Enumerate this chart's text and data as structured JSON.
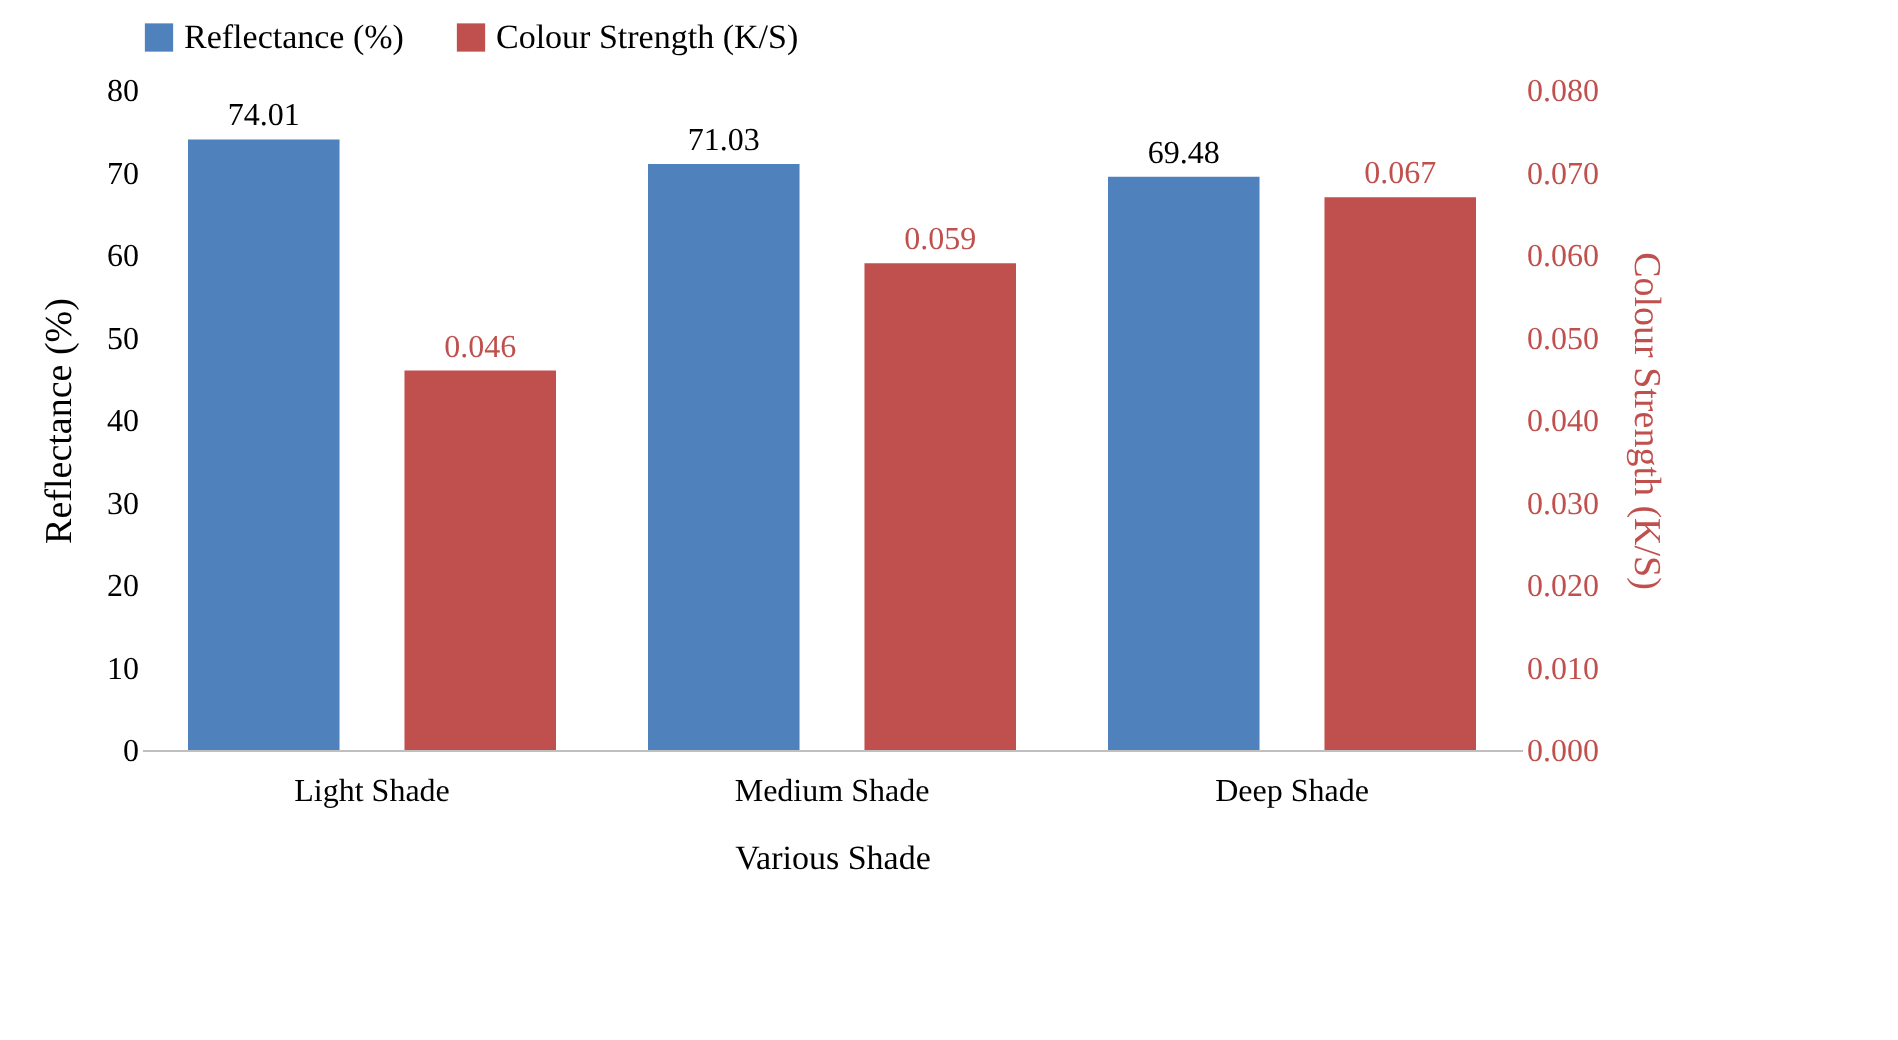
{
  "chart_data": {
    "type": "bar",
    "categories": [
      "Light Shade",
      "Medium Shade",
      "Deep Shade"
    ],
    "series": [
      {
        "name": "Reflectance (%)",
        "color": "#4f81bd",
        "values": [
          74.01,
          71.03,
          69.48
        ]
      },
      {
        "name": "Colour Strength (K/S)",
        "color": "#c0504d",
        "values": [
          0.046,
          0.059,
          0.067
        ],
        "axis": "y2"
      }
    ],
    "xlabel": "Various Shade",
    "ylabel": "Reflectance (%)",
    "y2label": "Colour Strength (K/S)",
    "ylim": [
      0,
      80
    ],
    "yticks": [
      0,
      10,
      20,
      30,
      40,
      50,
      60,
      70,
      80
    ],
    "y2lim": [
      0,
      0.08
    ],
    "y2ticks": [
      {
        "value": 0,
        "label": "0.000"
      },
      {
        "value": 0.01,
        "label": "0.010"
      },
      {
        "value": 0.02,
        "label": "0.020"
      },
      {
        "value": 0.03,
        "label": "0.030"
      },
      {
        "value": 0.04,
        "label": "0.040"
      },
      {
        "value": 0.05,
        "label": "0.050"
      },
      {
        "value": 0.06,
        "label": "0.060"
      },
      {
        "value": 0.07,
        "label": "0.070"
      },
      {
        "value": 0.08,
        "label": "0.080"
      }
    ],
    "data_labels": true,
    "legend": "top",
    "grid": false
  }
}
